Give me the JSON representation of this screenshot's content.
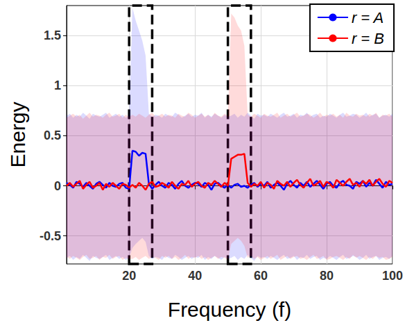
{
  "chart_data": {
    "type": "line",
    "x_label": "Frequency (f)",
    "y_label": "Energy",
    "xlim": [
      1,
      100
    ],
    "xticks": [
      20,
      40,
      60,
      80,
      100
    ],
    "ylim": [
      -0.78,
      1.8
    ],
    "yticks": [
      -0.5,
      0,
      0.5,
      1,
      1.5
    ],
    "grid": true,
    "legend": "upper right",
    "highlight_regions": [
      [
        20,
        27
      ],
      [
        50,
        57
      ]
    ],
    "x": [
      1,
      2,
      3,
      4,
      5,
      6,
      7,
      8,
      9,
      10,
      11,
      12,
      13,
      14,
      15,
      16,
      17,
      18,
      19,
      20,
      21,
      22,
      23,
      24,
      25,
      26,
      27,
      28,
      29,
      30,
      31,
      32,
      33,
      34,
      35,
      36,
      37,
      38,
      39,
      40,
      41,
      42,
      43,
      44,
      45,
      46,
      47,
      48,
      49,
      50,
      51,
      52,
      53,
      54,
      55,
      56,
      57,
      58,
      59,
      60,
      61,
      62,
      63,
      64,
      65,
      66,
      67,
      68,
      69,
      70,
      71,
      72,
      73,
      74,
      75,
      76,
      77,
      78,
      79,
      80,
      81,
      82,
      83,
      84,
      85,
      86,
      87,
      88,
      89,
      90,
      91,
      92,
      93,
      94,
      95,
      96,
      97,
      98,
      99,
      100
    ],
    "series": [
      {
        "name": "r = A",
        "color": "#0000ff",
        "values": [
          0.03,
          0.01,
          -0.02,
          0.04,
          0.02,
          -0.01,
          0.03,
          0.0,
          -0.03,
          0.02,
          0.04,
          0.01,
          -0.02,
          0.03,
          0.0,
          -0.01,
          0.02,
          0.03,
          -0.02,
          -0.03,
          0.35,
          0.34,
          0.3,
          0.33,
          0.32,
          0.02,
          -0.03,
          0.01,
          0.04,
          0.0,
          -0.02,
          0.03,
          0.01,
          -0.03,
          0.02,
          0.05,
          0.0,
          -0.02,
          0.01,
          0.03,
          0.02,
          -0.01,
          0.03,
          0.01,
          -0.04,
          0.02,
          0.03,
          0.0,
          -0.02,
          0.01,
          -0.02,
          0.01,
          0.02,
          -0.01,
          0.0,
          -0.02,
          0.01,
          0.03,
          -0.01,
          0.02,
          0.0,
          0.04,
          -0.02,
          0.01,
          0.03,
          0.0,
          -0.04,
          0.02,
          0.05,
          0.01,
          -0.02,
          0.03,
          0.0,
          0.04,
          -0.01,
          0.02,
          0.05,
          0.01,
          -0.03,
          0.02,
          0.04,
          0.0,
          -0.02,
          0.03,
          0.05,
          0.01,
          0.0,
          -0.03,
          0.04,
          0.02,
          0.05,
          -0.01,
          0.03,
          0.0,
          0.06,
          0.02,
          -0.02,
          0.04,
          0.01,
          0.02
        ],
        "band_upper": [
          0.7,
          0.72,
          0.68,
          0.71,
          0.69,
          0.73,
          0.7,
          0.67,
          0.72,
          0.7,
          0.69,
          0.71,
          0.73,
          0.68,
          0.7,
          0.72,
          0.69,
          0.71,
          0.68,
          0.7,
          1.78,
          1.65,
          1.55,
          1.45,
          1.3,
          0.72,
          0.69,
          0.71,
          0.7,
          0.68,
          0.72,
          0.7,
          0.69,
          0.73,
          0.71,
          0.68,
          0.7,
          0.72,
          0.69,
          0.71,
          0.7,
          0.73,
          0.68,
          0.71,
          0.69,
          0.72,
          0.7,
          0.68,
          0.71,
          0.69,
          0.7,
          0.72,
          0.68,
          0.71,
          0.69,
          0.73,
          0.7,
          0.67,
          0.72,
          0.7,
          0.71,
          0.69,
          0.72,
          0.7,
          0.68,
          0.71,
          0.73,
          0.69,
          0.7,
          0.72,
          0.68,
          0.71,
          0.7,
          0.73,
          0.69,
          0.71,
          0.72,
          0.68,
          0.7,
          0.69,
          0.72,
          0.7,
          0.68,
          0.71,
          0.73,
          0.69,
          0.7,
          0.72,
          0.71,
          0.68,
          0.7,
          0.73,
          0.69,
          0.71,
          0.72,
          0.68,
          0.7,
          0.71,
          0.69,
          0.72
        ],
        "band_lower": [
          -0.72,
          -0.7,
          -0.74,
          -0.71,
          -0.73,
          -0.69,
          -0.72,
          -0.75,
          -0.7,
          -0.72,
          -0.73,
          -0.71,
          -0.69,
          -0.74,
          -0.72,
          -0.7,
          -0.73,
          -0.71,
          -0.74,
          -0.72,
          -0.62,
          -0.58,
          -0.55,
          -0.52,
          -0.56,
          -0.7,
          -0.73,
          -0.71,
          -0.72,
          -0.74,
          -0.7,
          -0.72,
          -0.73,
          -0.69,
          -0.71,
          -0.74,
          -0.72,
          -0.7,
          -0.73,
          -0.71,
          -0.72,
          -0.69,
          -0.74,
          -0.71,
          -0.73,
          -0.7,
          -0.72,
          -0.74,
          -0.71,
          -0.73,
          -0.72,
          -0.7,
          -0.74,
          -0.71,
          -0.73,
          -0.69,
          -0.72,
          -0.75,
          -0.7,
          -0.72,
          -0.71,
          -0.73,
          -0.7,
          -0.72,
          -0.74,
          -0.71,
          -0.69,
          -0.73,
          -0.72,
          -0.7,
          -0.74,
          -0.71,
          -0.72,
          -0.69,
          -0.73,
          -0.71,
          -0.7,
          -0.74,
          -0.72,
          -0.73,
          -0.7,
          -0.72,
          -0.74,
          -0.71,
          -0.69,
          -0.73,
          -0.72,
          -0.7,
          -0.71,
          -0.74,
          -0.72,
          -0.69,
          -0.73,
          -0.71,
          -0.7,
          -0.74,
          -0.72,
          -0.71,
          -0.73,
          -0.7
        ]
      },
      {
        "name": "r = B",
        "color": "#ff0000",
        "values": [
          0.0,
          0.03,
          -0.01,
          0.02,
          0.05,
          -0.03,
          0.01,
          0.04,
          -0.02,
          0.0,
          0.03,
          -0.04,
          0.02,
          -0.01,
          0.03,
          0.0,
          -0.03,
          0.02,
          0.01,
          -0.02,
          0.01,
          -0.02,
          0.03,
          0.0,
          -0.04,
          0.02,
          0.04,
          -0.01,
          0.0,
          0.03,
          0.01,
          -0.02,
          0.04,
          0.0,
          -0.03,
          0.02,
          0.01,
          0.05,
          -0.01,
          0.02,
          0.04,
          0.0,
          -0.02,
          0.03,
          0.01,
          0.05,
          0.02,
          -0.01,
          0.03,
          0.0,
          0.27,
          0.29,
          0.31,
          0.31,
          0.32,
          0.03,
          -0.01,
          0.02,
          0.0,
          0.04,
          -0.02,
          0.03,
          0.01,
          -0.03,
          0.05,
          0.02,
          0.0,
          0.04,
          -0.01,
          0.03,
          0.06,
          0.01,
          -0.02,
          0.03,
          0.07,
          0.0,
          0.02,
          0.05,
          -0.01,
          0.04,
          0.02,
          -0.02,
          0.06,
          0.03,
          0.0,
          0.04,
          0.07,
          0.01,
          0.03,
          -0.01,
          0.05,
          0.02,
          0.06,
          0.0,
          0.04,
          0.07,
          0.02,
          -0.01,
          0.05,
          0.03
        ],
        "band_upper": [
          0.68,
          0.7,
          0.72,
          0.69,
          0.71,
          0.67,
          0.7,
          0.73,
          0.69,
          0.71,
          0.7,
          0.68,
          0.71,
          0.73,
          0.69,
          0.7,
          0.72,
          0.68,
          0.71,
          0.69,
          0.71,
          0.69,
          0.72,
          0.7,
          0.68,
          0.71,
          0.73,
          0.69,
          0.7,
          0.72,
          0.69,
          0.71,
          0.7,
          0.68,
          0.72,
          0.7,
          0.69,
          0.73,
          0.71,
          0.68,
          0.7,
          0.72,
          0.69,
          0.71,
          0.68,
          0.73,
          0.7,
          0.69,
          0.72,
          0.7,
          1.72,
          1.68,
          1.6,
          1.55,
          1.4,
          0.71,
          0.69,
          0.72,
          0.7,
          0.68,
          0.72,
          0.7,
          0.69,
          0.71,
          0.73,
          0.68,
          0.7,
          0.72,
          0.69,
          0.71,
          0.73,
          0.69,
          0.7,
          0.72,
          0.71,
          0.68,
          0.7,
          0.73,
          0.69,
          0.71,
          0.7,
          0.72,
          0.69,
          0.71,
          0.68,
          0.73,
          0.7,
          0.69,
          0.72,
          0.7,
          0.71,
          0.69,
          0.72,
          0.7,
          0.73,
          0.68,
          0.71,
          0.7,
          0.72,
          0.69
        ],
        "band_lower": [
          -0.71,
          -0.73,
          -0.7,
          -0.72,
          -0.74,
          -0.71,
          -0.69,
          -0.73,
          -0.72,
          -0.7,
          -0.74,
          -0.71,
          -0.72,
          -0.69,
          -0.73,
          -0.71,
          -0.7,
          -0.74,
          -0.72,
          -0.73,
          -0.73,
          -0.71,
          -0.74,
          -0.72,
          -0.7,
          -0.73,
          -0.71,
          -0.72,
          -0.74,
          -0.7,
          -0.72,
          -0.7,
          -0.73,
          -0.71,
          -0.74,
          -0.72,
          -0.69,
          -0.73,
          -0.71,
          -0.72,
          -0.7,
          -0.73,
          -0.71,
          -0.74,
          -0.72,
          -0.7,
          -0.73,
          -0.71,
          -0.72,
          -0.74,
          -0.58,
          -0.55,
          -0.52,
          -0.55,
          -0.6,
          -0.72,
          -0.7,
          -0.73,
          -0.71,
          -0.74,
          -0.72,
          -0.7,
          -0.73,
          -0.71,
          -0.69,
          -0.74,
          -0.72,
          -0.7,
          -0.73,
          -0.71,
          -0.7,
          -0.73,
          -0.72,
          -0.74,
          -0.71,
          -0.69,
          -0.73,
          -0.72,
          -0.7,
          -0.74,
          -0.73,
          -0.71,
          -0.7,
          -0.72,
          -0.74,
          -0.71,
          -0.73,
          -0.69,
          -0.72,
          -0.7,
          -0.72,
          -0.74,
          -0.71,
          -0.73,
          -0.7,
          -0.72,
          -0.71,
          -0.74,
          -0.73,
          -0.71
        ]
      }
    ]
  }
}
